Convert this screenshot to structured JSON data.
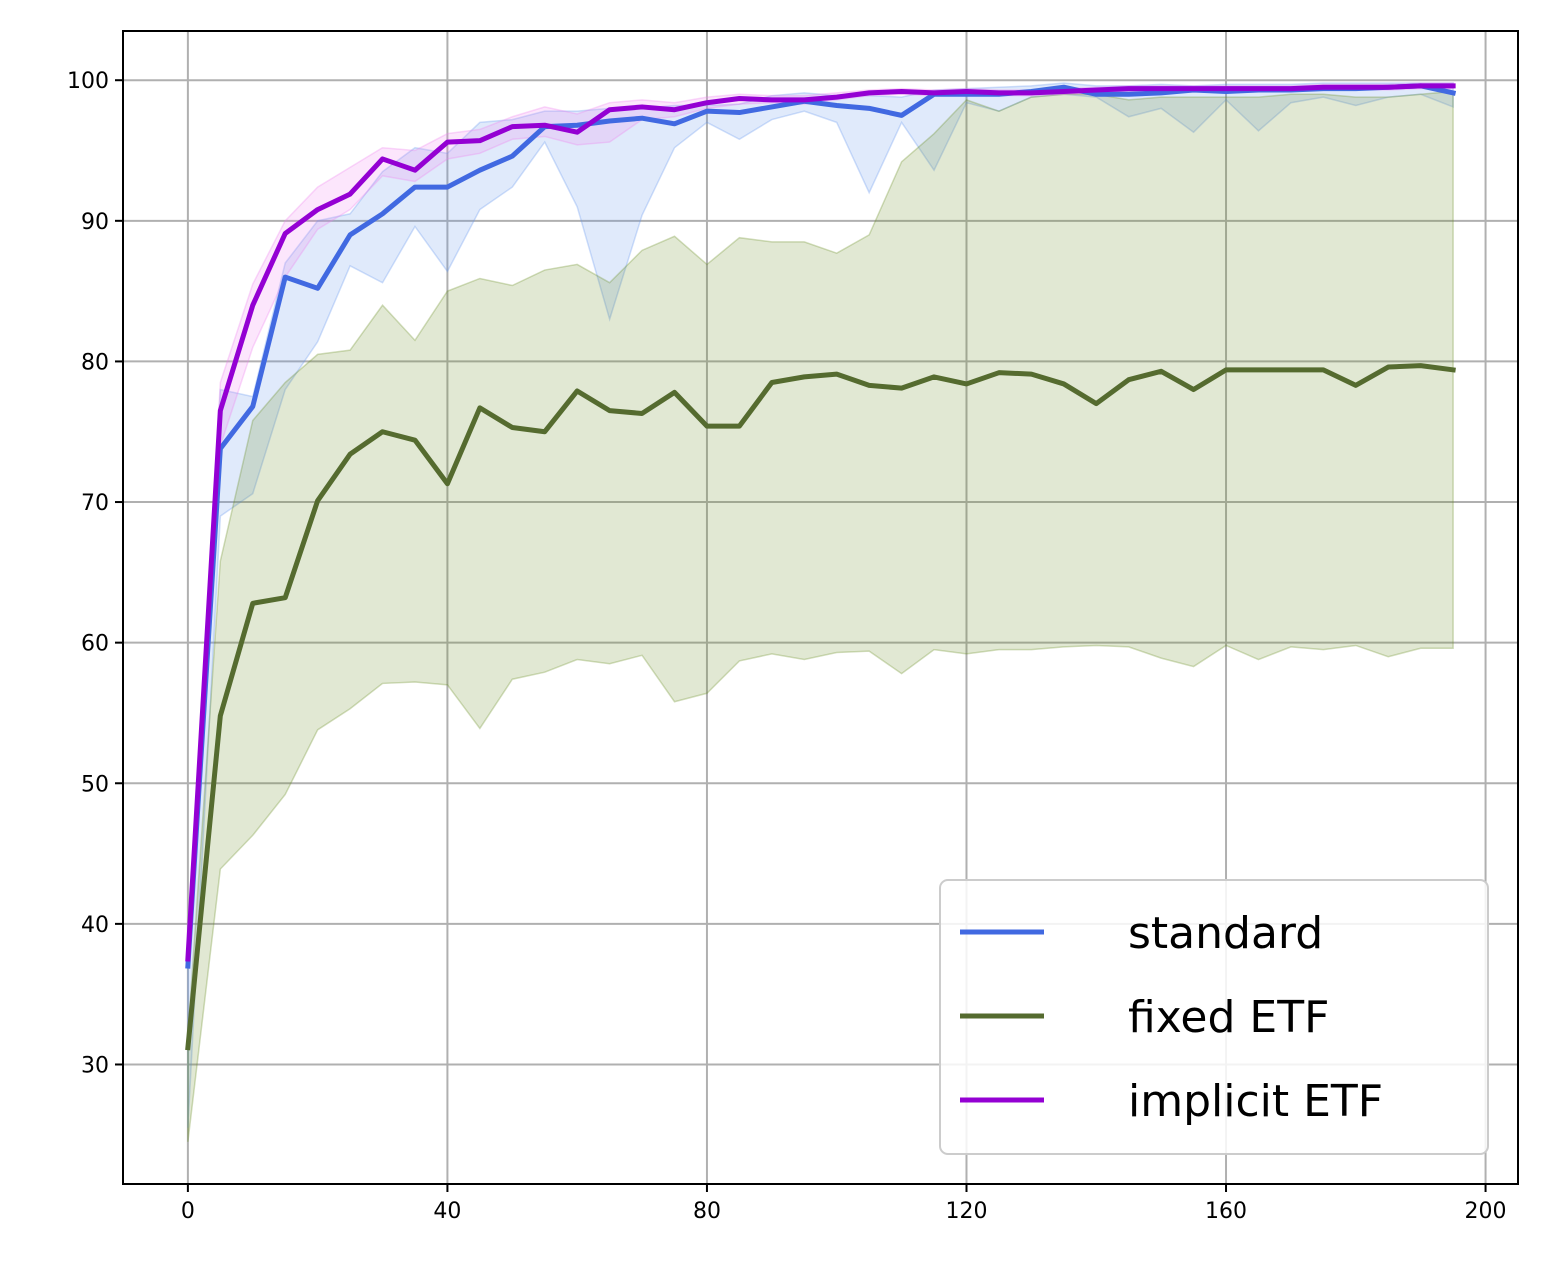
{
  "chart_data": {
    "type": "line",
    "title": "",
    "xlabel": "",
    "ylabel": "",
    "xlim": [
      -10,
      205
    ],
    "ylim": [
      21.5,
      103.5
    ],
    "xticks": [
      0,
      40,
      80,
      120,
      160,
      200
    ],
    "yticks": [
      30,
      40,
      50,
      60,
      70,
      80,
      90,
      100
    ],
    "grid": true,
    "legend_position": "lower-right",
    "x": [
      0,
      5,
      10,
      15,
      20,
      25,
      30,
      35,
      40,
      45,
      50,
      55,
      60,
      65,
      70,
      75,
      80,
      85,
      90,
      95,
      100,
      105,
      110,
      115,
      120,
      125,
      130,
      135,
      140,
      145,
      150,
      155,
      160,
      165,
      170,
      175,
      180,
      185,
      190,
      195
    ],
    "series": [
      {
        "name": "standard",
        "color": "#4169e1",
        "band_color": "#6495ed",
        "values": [
          37,
          73.8,
          76.8,
          86,
          85.2,
          89,
          90.5,
          92.4,
          92.4,
          93.6,
          94.6,
          96.7,
          96.8,
          97.1,
          97.3,
          96.9,
          97.8,
          97.7,
          98.1,
          98.5,
          98.2,
          98,
          97.5,
          99,
          99,
          99,
          99.2,
          99.5,
          99,
          99,
          99.1,
          99.3,
          99.2,
          99.3,
          99.3,
          99.4,
          99.4,
          99.5,
          99.6,
          99.1
        ],
        "lower": [
          25.5,
          69,
          70.6,
          78,
          81.4,
          86.8,
          85.6,
          89.6,
          86.4,
          90.8,
          92.4,
          95.6,
          91,
          83,
          90.4,
          95.2,
          97,
          95.8,
          97.2,
          97.8,
          97,
          92,
          97,
          93.6,
          98.4,
          97.8,
          98.8,
          99,
          98.8,
          97.4,
          98,
          96.3,
          98.6,
          96.4,
          98.4,
          98.8,
          98.2,
          98.8,
          99,
          98.1
        ],
        "upper": [
          38,
          78,
          77.5,
          87,
          90,
          90.5,
          93.5,
          95.2,
          94.8,
          97,
          97.2,
          97.8,
          97.8,
          98,
          98,
          98.2,
          98.2,
          98.3,
          98.9,
          99.1,
          98.9,
          98.9,
          98.8,
          99.3,
          99.4,
          99.5,
          99.6,
          99.8,
          99.6,
          99.6,
          99.7,
          99.6,
          99.7,
          99.7,
          99.7,
          99.8,
          99.8,
          99.8,
          99.8,
          99.8
        ]
      },
      {
        "name": "fixed ETF",
        "color": "#556b2f",
        "band_color": "#6b8e23",
        "values": [
          31.2,
          54.8,
          62.8,
          63.2,
          70.1,
          73.4,
          75,
          74.4,
          71.3,
          76.7,
          75.3,
          75,
          77.9,
          76.5,
          76.3,
          77.8,
          75.4,
          75.4,
          78.5,
          78.9,
          79.1,
          78.3,
          78.1,
          78.9,
          78.4,
          79.2,
          79.1,
          78.4,
          77,
          78.7,
          79.3,
          78,
          79.4,
          79.4,
          79.4,
          79.4,
          78.3,
          79.6,
          79.7,
          79.4
        ],
        "lower": [
          24.5,
          43.9,
          46.3,
          49.2,
          53.8,
          55.3,
          57.1,
          57.2,
          57,
          53.9,
          57.4,
          57.9,
          58.8,
          58.5,
          59.1,
          55.8,
          56.4,
          58.7,
          59.2,
          58.8,
          59.3,
          59.4,
          57.8,
          59.5,
          59.2,
          59.5,
          59.5,
          59.7,
          59.8,
          59.7,
          58.9,
          58.3,
          59.8,
          58.8,
          59.7,
          59.5,
          59.8,
          59,
          59.6,
          59.6
        ],
        "upper": [
          32,
          65.8,
          75.8,
          78.5,
          80.5,
          80.8,
          84,
          81.5,
          85,
          85.9,
          85.4,
          86.5,
          86.9,
          85.6,
          87.9,
          88.9,
          86.9,
          88.8,
          88.5,
          88.5,
          87.7,
          89,
          94.2,
          96.2,
          98.6,
          97.8,
          98.8,
          99,
          99,
          98.6,
          98.8,
          98.8,
          98.8,
          98.8,
          99,
          99,
          98.8,
          98.8,
          99,
          99.2
        ]
      },
      {
        "name": "implicit ETF",
        "color": "#9400d3",
        "band_color": "#ee82ee",
        "values": [
          37.5,
          76.5,
          84,
          89.1,
          90.8,
          91.9,
          94.4,
          93.6,
          95.6,
          95.7,
          96.7,
          96.8,
          96.3,
          97.9,
          98.1,
          97.9,
          98.4,
          98.7,
          98.6,
          98.6,
          98.8,
          99.1,
          99.2,
          99.1,
          99.2,
          99.1,
          99.1,
          99.2,
          99.3,
          99.4,
          99.4,
          99.4,
          99.4,
          99.4,
          99.4,
          99.5,
          99.5,
          99.5,
          99.6,
          99.6
        ],
        "lower": [
          37,
          74,
          81,
          86,
          89.4,
          90.8,
          93.2,
          92.8,
          94.4,
          94.8,
          95.8,
          96,
          95.4,
          95.6,
          97.2,
          97.4,
          98,
          98.3,
          98.4,
          98.3,
          98.6,
          98.9,
          99,
          98.9,
          99,
          98.9,
          98.9,
          99,
          99.1,
          99.2,
          99.2,
          99.2,
          99.2,
          99.2,
          99.2,
          99.3,
          99.3,
          99.3,
          99.4,
          99.4
        ],
        "upper": [
          38,
          78.5,
          85.5,
          90,
          92.4,
          93.8,
          95.2,
          95,
          96.2,
          96.5,
          97.4,
          98.1,
          97.6,
          98.4,
          98.6,
          98.4,
          98.8,
          99,
          98.9,
          98.9,
          99.1,
          99.3,
          99.4,
          99.3,
          99.4,
          99.3,
          99.3,
          99.4,
          99.5,
          99.6,
          99.6,
          99.6,
          99.6,
          99.6,
          99.6,
          99.7,
          99.7,
          99.7,
          99.8,
          99.8
        ]
      }
    ]
  }
}
